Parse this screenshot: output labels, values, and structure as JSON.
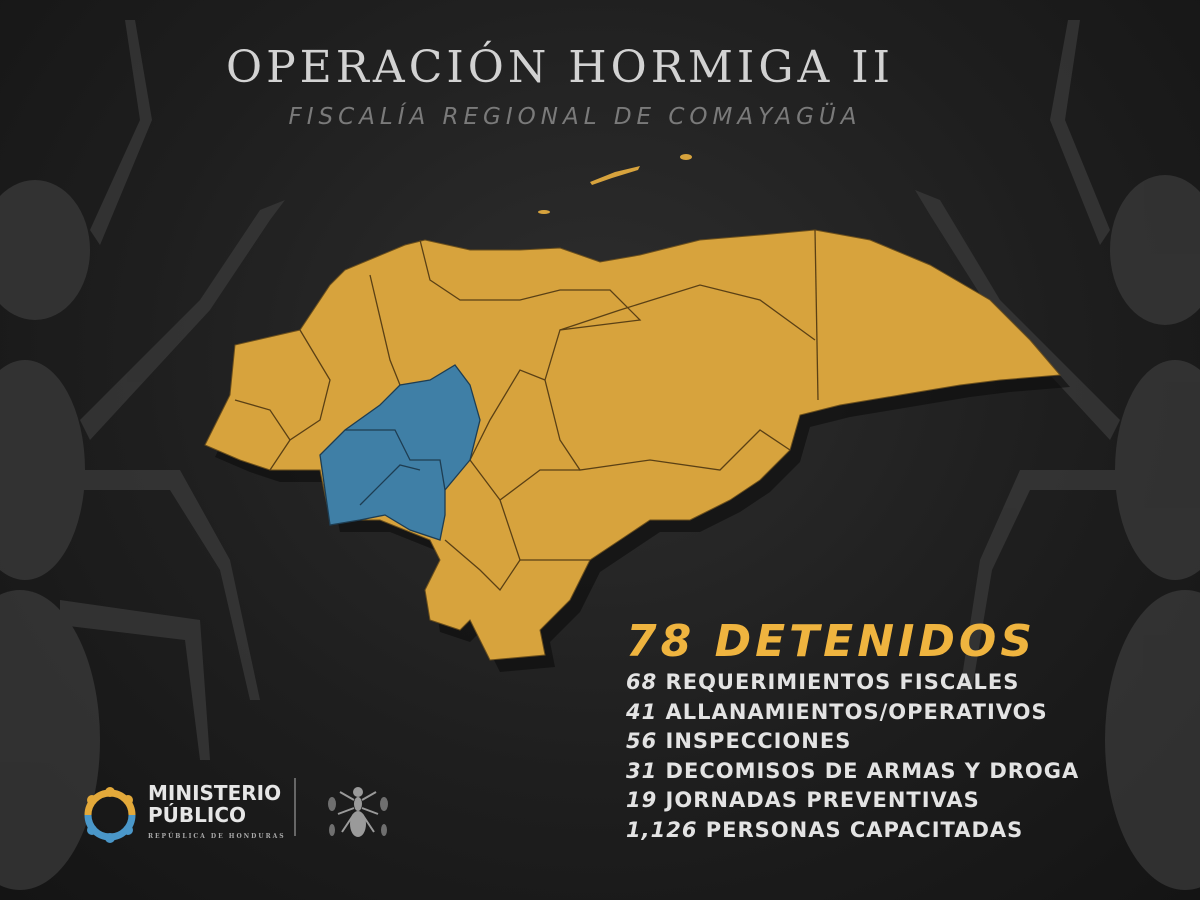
{
  "header": {
    "title": "OPERACIÓN HORMIGA II",
    "subtitle": "FISCALÍA REGIONAL DE COMAYAGÜA"
  },
  "map": {
    "country": "Honduras",
    "colors": {
      "default_region": "#d7a33d",
      "highlighted_region": "#3f7fa6",
      "background": "#1e1e1e"
    }
  },
  "stats": {
    "headline_number": "78",
    "headline_label": "DETENIDOS",
    "items": [
      {
        "number": "68",
        "label": "REQUERIMIENTOS FISCALES"
      },
      {
        "number": "41",
        "label": "ALLANAMIENTOS/OPERATIVOS"
      },
      {
        "number": "56",
        "label": "INSPECCIONES"
      },
      {
        "number": "31",
        "label": "DECOMISOS DE ARMAS Y DROGA"
      },
      {
        "number": "19",
        "label": "JORNADAS PREVENTIVAS"
      },
      {
        "number": "1,126",
        "label": "PERSONAS CAPACITADAS"
      }
    ],
    "colors": {
      "headline": "#efb43f",
      "text": "#e3e3e3"
    }
  },
  "footer": {
    "logo_line1": "MINISTERIO",
    "logo_line2": "PÚBLICO",
    "logo_subline": "REPÚBLICA DE HONDURAS"
  }
}
